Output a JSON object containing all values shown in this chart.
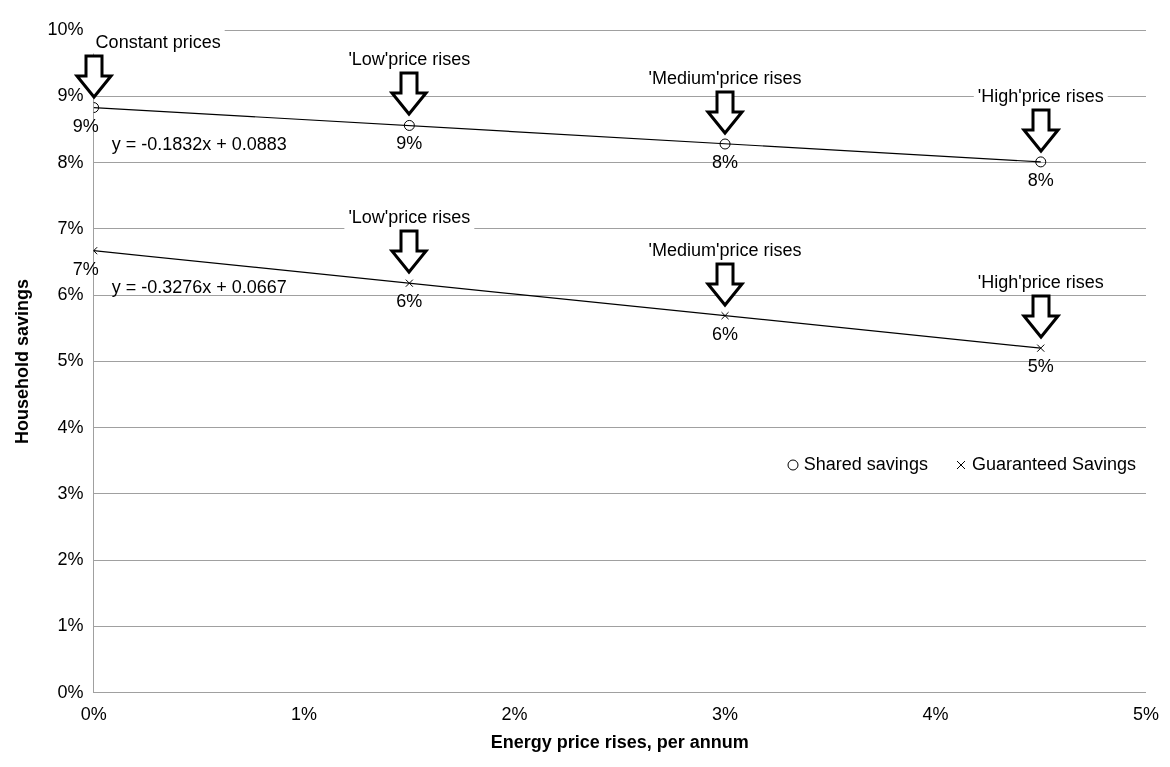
{
  "chart_data": {
    "type": "scatter",
    "xlabel": "Energy price rises, per annum",
    "ylabel": "Household savings",
    "xlim": [
      0,
      5
    ],
    "xticks": [
      {
        "value": 0,
        "label": "0%"
      },
      {
        "value": 1,
        "label": "1%"
      },
      {
        "value": 2,
        "label": "2%"
      },
      {
        "value": 3,
        "label": "3%"
      },
      {
        "value": 4,
        "label": "4%"
      },
      {
        "value": 5,
        "label": "5%"
      }
    ],
    "ylim": [
      0,
      10
    ],
    "yticks": [
      {
        "value": 0,
        "label": "0%"
      },
      {
        "value": 1,
        "label": "1%"
      },
      {
        "value": 2,
        "label": "2%"
      },
      {
        "value": 3,
        "label": "3%"
      },
      {
        "value": 4,
        "label": "4%"
      },
      {
        "value": 5,
        "label": "5%"
      },
      {
        "value": 6,
        "label": "6%"
      },
      {
        "value": 7,
        "label": "7%"
      },
      {
        "value": 8,
        "label": "8%"
      },
      {
        "value": 9,
        "label": "9%"
      },
      {
        "value": 10,
        "label": "10%"
      }
    ],
    "grid": "y",
    "legend": "bottom right",
    "series": [
      {
        "name": "Shared savings",
        "marker": "circle",
        "color": "#000000",
        "x": [
          0,
          1.5,
          3,
          4.5
        ],
        "values": [
          8.83,
          8.56,
          8.28,
          8.01
        ],
        "value_labels": [
          "9%",
          "9%",
          "8%",
          "8%"
        ]
      },
      {
        "name": "Guaranteed Savings",
        "marker": "cross",
        "color": "#000000",
        "x": [
          0,
          1.5,
          3,
          4.5
        ],
        "values": [
          6.67,
          6.18,
          5.69,
          5.2
        ],
        "value_labels": [
          "7%",
          "6%",
          "6%",
          "5%"
        ]
      },
      {
        "type": "line",
        "marker": "none",
        "color": "#000000",
        "x": [
          0,
          4.5
        ],
        "values": [
          8.83,
          8.01
        ]
      },
      {
        "type": "line",
        "marker": "none",
        "color": "#000000",
        "x": [
          0,
          4.5
        ],
        "values": [
          6.67,
          5.2
        ]
      }
    ],
    "annotations": [
      "Constant prices",
      "'Low'price rises",
      "'Medium'price rises",
      "'High'price rises",
      "'Low'price rises",
      "'Medium'price rises",
      "'High'price rises",
      "y = -0.1832x + 0.0883",
      "y = -0.3276x + 0.0667"
    ]
  }
}
